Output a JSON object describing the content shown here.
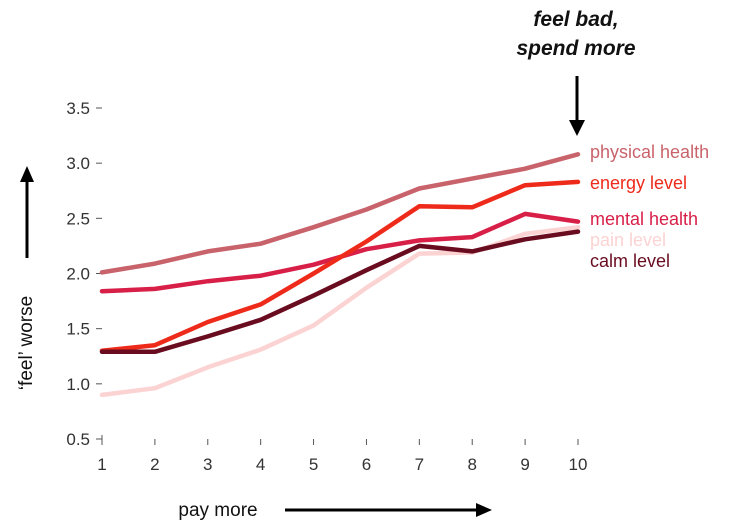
{
  "chart_data": {
    "type": "line",
    "title": "",
    "annotation": [
      "feel bad,",
      "spend more"
    ],
    "xlabel": "pay more",
    "ylabel": "‘feel’ worse",
    "x": [
      1,
      2,
      3,
      4,
      5,
      6,
      7,
      8,
      9,
      10
    ],
    "xlim": [
      1,
      10
    ],
    "ylim": [
      0.5,
      3.5
    ],
    "yticks": [
      "0.5",
      "1.0",
      "1.5",
      "2.0",
      "2.5",
      "3.0",
      "3.5"
    ],
    "xticks": [
      "1",
      "2",
      "3",
      "4",
      "5",
      "6",
      "7",
      "8",
      "9",
      "10"
    ],
    "grid": false,
    "legend": "direct labels at line ends (right)",
    "series": [
      {
        "name": "physical health",
        "color": "#c9636b",
        "values": [
          2.01,
          2.09,
          2.2,
          2.27,
          2.42,
          2.58,
          2.77,
          2.86,
          2.95,
          3.08
        ]
      },
      {
        "name": "energy level",
        "color": "#ee2a1a",
        "values": [
          1.3,
          1.35,
          1.56,
          1.72,
          2.0,
          2.29,
          2.61,
          2.6,
          2.8,
          2.83
        ]
      },
      {
        "name": "mental health",
        "color": "#d81f48",
        "values": [
          1.84,
          1.86,
          1.93,
          1.98,
          2.08,
          2.22,
          2.3,
          2.33,
          2.54,
          2.47
        ]
      },
      {
        "name": "pain level",
        "color": "#fcd3d3",
        "values": [
          0.9,
          0.96,
          1.15,
          1.31,
          1.53,
          1.87,
          2.18,
          2.19,
          2.36,
          2.42
        ]
      },
      {
        "name": "calm level",
        "color": "#6a0c1f",
        "values": [
          1.29,
          1.29,
          1.43,
          1.58,
          1.8,
          2.03,
          2.25,
          2.2,
          2.31,
          2.38
        ]
      }
    ]
  }
}
